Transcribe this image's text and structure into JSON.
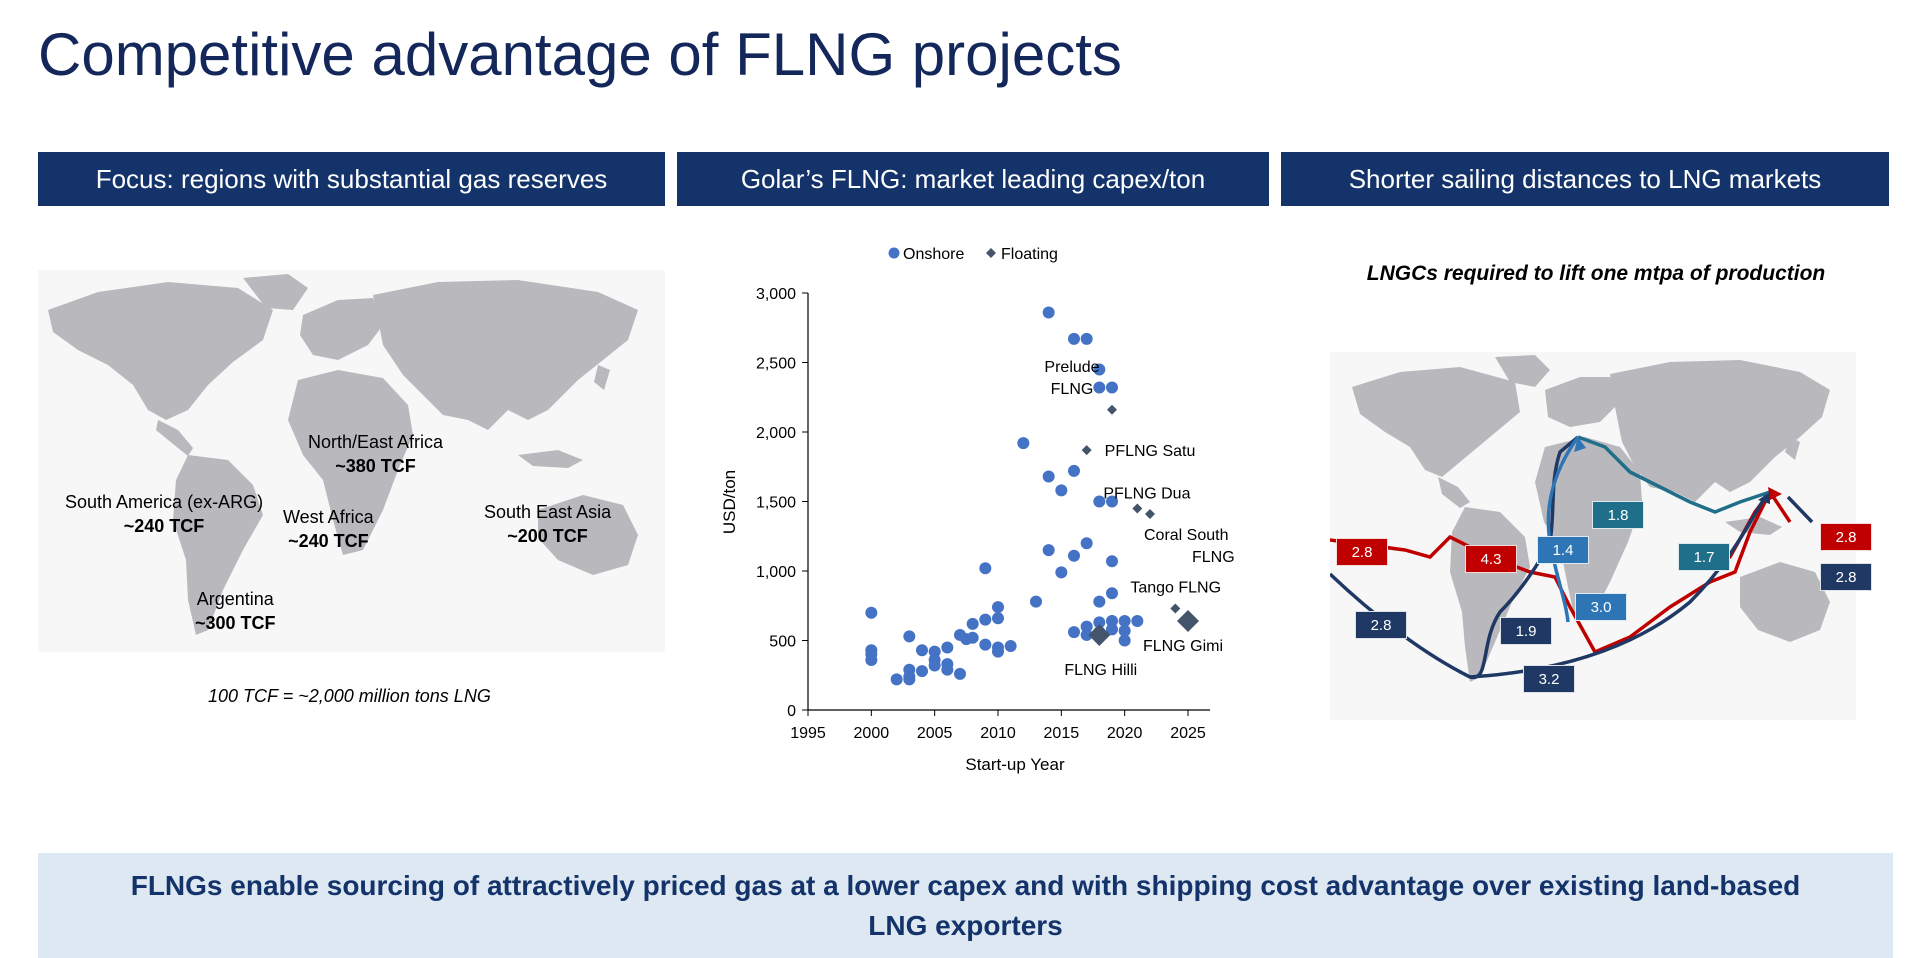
{
  "title": "Competitive advantage of FLNG projects",
  "headers": {
    "left": "Focus: regions with substantial gas reserves",
    "middle": "Golar’s FLNG: market leading capex/ton",
    "right": "Shorter sailing distances to LNG markets"
  },
  "left_map": {
    "regions": [
      {
        "name": "North/East Africa",
        "value": "~380 TCF"
      },
      {
        "name": "South America (ex-ARG)",
        "value": "~240 TCF"
      },
      {
        "name": "West Africa",
        "value": "~240 TCF"
      },
      {
        "name": "South East Asia",
        "value": "~200 TCF"
      },
      {
        "name": "Argentina",
        "value": "~300 TCF"
      }
    ],
    "note": "100 TCF = ~2,000 million tons LNG"
  },
  "chart_data": {
    "type": "scatter",
    "title": "",
    "xlabel": "Start-up Year",
    "ylabel": "USD/ton",
    "xlim": [
      1995,
      2025
    ],
    "ylim": [
      0,
      3000
    ],
    "x_ticks": [
      "1995",
      "2000",
      "2005",
      "2010",
      "2015",
      "2020",
      "2025"
    ],
    "y_ticks": [
      "0",
      "500",
      "1,000",
      "1,500",
      "2,000",
      "2,500",
      "3,000"
    ],
    "legend": {
      "position": "top",
      "entries": [
        "Onshore",
        "Floating"
      ]
    },
    "colors": {
      "onshore": "#4472c4",
      "floating": "#44546a"
    },
    "series": [
      {
        "name": "Onshore",
        "marker": "circle",
        "points": [
          [
            2000,
            700
          ],
          [
            2000,
            430
          ],
          [
            2000,
            400
          ],
          [
            2000,
            360
          ],
          [
            2002,
            220
          ],
          [
            2003,
            530
          ],
          [
            2003,
            290
          ],
          [
            2003,
            240
          ],
          [
            2003,
            220
          ],
          [
            2004,
            430
          ],
          [
            2004,
            280
          ],
          [
            2005,
            420
          ],
          [
            2005,
            360
          ],
          [
            2005,
            320
          ],
          [
            2006,
            450
          ],
          [
            2006,
            330
          ],
          [
            2006,
            290
          ],
          [
            2007,
            540
          ],
          [
            2007,
            260
          ],
          [
            2007.5,
            510
          ],
          [
            2008,
            620
          ],
          [
            2008,
            520
          ],
          [
            2009,
            1020
          ],
          [
            2009,
            650
          ],
          [
            2009,
            470
          ],
          [
            2010,
            740
          ],
          [
            2010,
            660
          ],
          [
            2010,
            450
          ],
          [
            2010,
            420
          ],
          [
            2011,
            460
          ],
          [
            2012,
            1920
          ],
          [
            2013,
            780
          ],
          [
            2014,
            2860
          ],
          [
            2014,
            1680
          ],
          [
            2014,
            1150
          ],
          [
            2015,
            1580
          ],
          [
            2015,
            990
          ],
          [
            2016,
            2670
          ],
          [
            2016,
            1720
          ],
          [
            2016,
            1110
          ],
          [
            2016,
            560
          ],
          [
            2017,
            2670
          ],
          [
            2017,
            1200
          ],
          [
            2017,
            600
          ],
          [
            2017,
            540
          ],
          [
            2018,
            2450
          ],
          [
            2018,
            2320
          ],
          [
            2018,
            1500
          ],
          [
            2018,
            780
          ],
          [
            2018,
            630
          ],
          [
            2018,
            560
          ],
          [
            2019,
            2320
          ],
          [
            2019,
            1500
          ],
          [
            2019,
            1070
          ],
          [
            2019,
            840
          ],
          [
            2019,
            640
          ],
          [
            2019,
            580
          ],
          [
            2020,
            640
          ],
          [
            2020,
            570
          ],
          [
            2020,
            500
          ],
          [
            2021,
            640
          ]
        ]
      },
      {
        "name": "Floating",
        "marker": "diamond",
        "points": [
          {
            "x": 2019,
            "y": 2160,
            "label": "Prelude FLNG"
          },
          {
            "x": 2017,
            "y": 1870,
            "label": "PFLNG Satu"
          },
          {
            "x": 2021,
            "y": 1450,
            "label": "PFLNG Dua"
          },
          {
            "x": 2022,
            "y": 1410,
            "label": "Coral South FLNG"
          },
          {
            "x": 2024,
            "y": 730,
            "label": "Tango FLNG"
          },
          {
            "x": 2025,
            "y": 640,
            "label": "FLNG Gimi",
            "large": true
          },
          {
            "x": 2018,
            "y": 540,
            "label": "FLNG Hilli",
            "large": true
          }
        ]
      }
    ]
  },
  "right_map": {
    "title": "LNGCs required to lift one mtpa of production",
    "badges": [
      {
        "value": "2.8",
        "color": "#c00000"
      },
      {
        "value": "4.3",
        "color": "#c00000"
      },
      {
        "value": "2.8",
        "color": "#1f3864"
      },
      {
        "value": "1.9",
        "color": "#1f3864"
      },
      {
        "value": "3.2",
        "color": "#1f3864"
      },
      {
        "value": "1.4",
        "color": "#2e75b6"
      },
      {
        "value": "3.0",
        "color": "#2e75b6"
      },
      {
        "value": "1.8",
        "color": "#1f6f8b"
      },
      {
        "value": "1.7",
        "color": "#1f6f8b"
      },
      {
        "value": "2.8",
        "color": "#c00000"
      },
      {
        "value": "2.8",
        "color": "#1f3864"
      }
    ]
  },
  "banner": "FLNGs enable sourcing of attractively priced gas at a lower capex and with shipping cost advantage over existing land-based LNG exporters"
}
